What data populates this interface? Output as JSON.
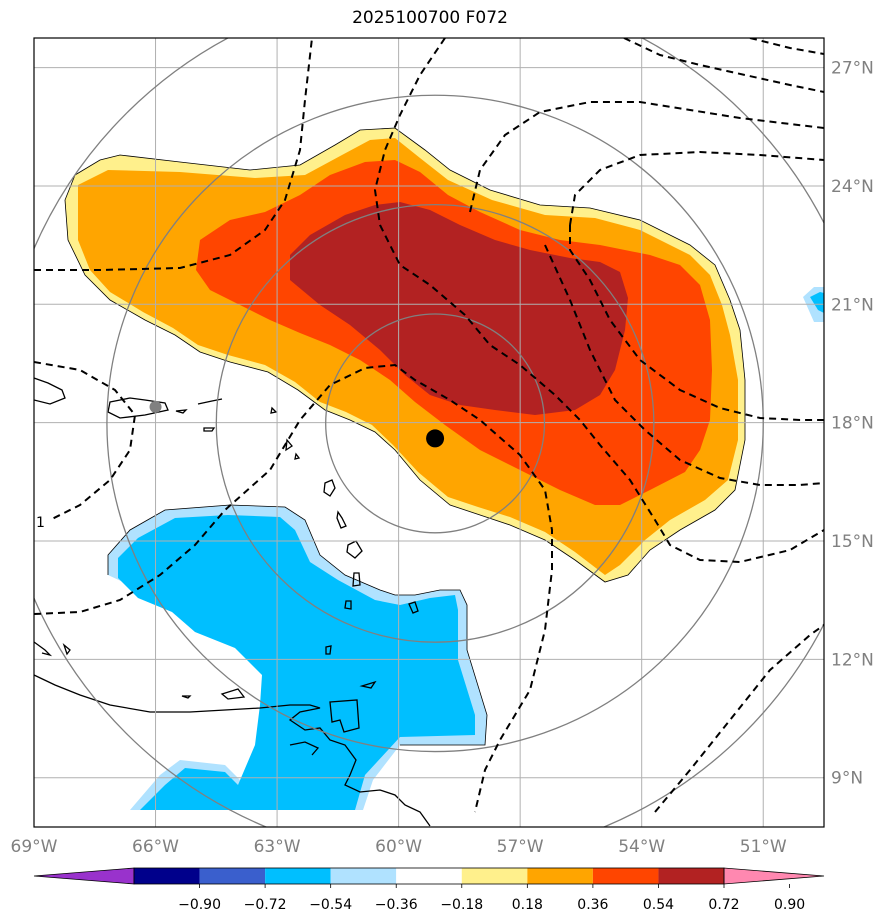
{
  "title": "2025100700 F072",
  "map": {
    "lon_range": [
      -69,
      -49.5
    ],
    "lat_range": [
      7.75,
      27.75
    ],
    "lon_ticks": [
      {
        "value": -69,
        "label": "69°W"
      },
      {
        "value": -66,
        "label": "66°W"
      },
      {
        "value": -63,
        "label": "63°W"
      },
      {
        "value": -60,
        "label": "60°W"
      },
      {
        "value": -57,
        "label": "57°W"
      },
      {
        "value": -54,
        "label": "54°W"
      },
      {
        "value": -51,
        "label": "51°W"
      }
    ],
    "lat_ticks": [
      {
        "value": 9,
        "label": "9°N"
      },
      {
        "value": 12,
        "label": "12°N"
      },
      {
        "value": 15,
        "label": "15°N"
      },
      {
        "value": 18,
        "label": "18°N"
      },
      {
        "value": 21,
        "label": "21°N"
      },
      {
        "value": 24,
        "label": "24°N"
      },
      {
        "value": 27,
        "label": "27°N"
      }
    ],
    "storm_center": {
      "lon": -59.1,
      "lat": 17.6
    },
    "reference_point": {
      "lon": -66.0,
      "lat": 18.4
    },
    "range_ring_radii_deg": [
      2.7,
      5.4,
      8.1,
      10.8
    ],
    "contour_label": "1"
  },
  "colorbar": {
    "labels": [
      "−0.90",
      "−0.72",
      "−0.54",
      "−0.36",
      "−0.18",
      "0.18",
      "0.36",
      "0.54",
      "0.72",
      "0.90"
    ],
    "colors": [
      "#9932cc",
      "#00008b",
      "#3a5fcd",
      "#00bfff",
      "#b0e2ff",
      "#ffffff",
      "#fff08c",
      "#ffa500",
      "#ff4500",
      "#b22222",
      "#ff88b0"
    ]
  },
  "colors": {
    "orange": "#ffa500",
    "red_orange": "#ff4500",
    "dark_red": "#b22222",
    "light_yellow": "#fff08c",
    "light_blue": "#b0e2ff",
    "deep_sky_blue": "#00bfff",
    "grid": "#b0b0b0",
    "ring": "#808080"
  }
}
